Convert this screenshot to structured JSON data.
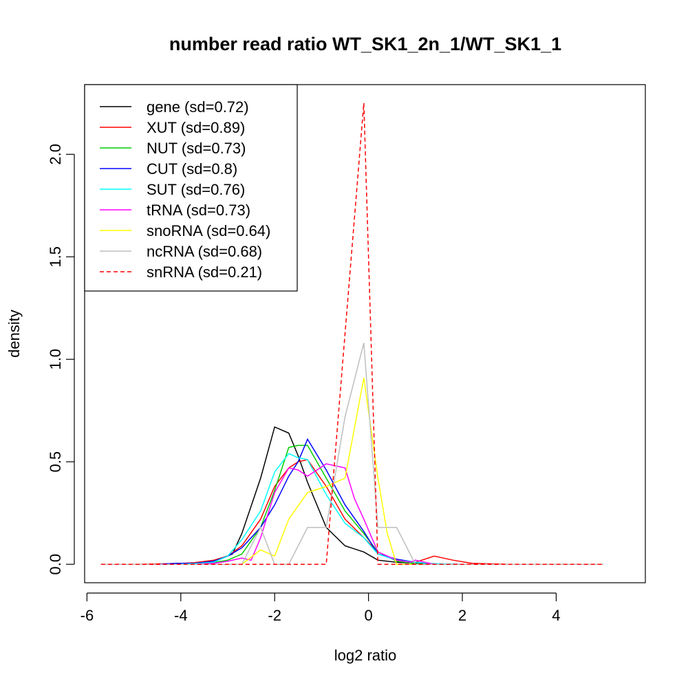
{
  "chart_data": {
    "type": "line",
    "title": "number read ratio WT_SK1_2n_1/WT_SK1_1",
    "xlabel": "log2 ratio",
    "ylabel": "density",
    "xlim": [
      -6.05,
      5.9
    ],
    "ylim": [
      -0.09,
      2.34
    ],
    "x_ticks": [
      -6,
      -4,
      -2,
      0,
      2,
      4
    ],
    "x_tick_labels": [
      "-6",
      "-4",
      "-2",
      "0",
      "2",
      "4"
    ],
    "y_ticks": [
      0,
      0.5,
      1,
      1.5,
      2
    ],
    "y_tick_labels": [
      "0.0",
      "0.5",
      "1.0",
      "1.5",
      "2.0"
    ],
    "grid": false,
    "legend_position": "top-left",
    "series": [
      {
        "name": "gene (sd=0.72)",
        "color": "#000000",
        "dash": "solid",
        "x": [
          -5.7,
          -5.3,
          -4.9,
          -4.5,
          -4.1,
          -3.7,
          -3.3,
          -2.9,
          -2.7,
          -2.3,
          -2.0,
          -1.7,
          -1.5,
          -1.3,
          -0.9,
          -0.5,
          -0.1,
          0.2,
          0.6,
          1.0,
          1.4,
          1.8,
          2.2,
          3.0,
          4.0,
          5.0
        ],
        "y": [
          0,
          0,
          0,
          0,
          0.002,
          0.005,
          0.015,
          0.05,
          0.15,
          0.42,
          0.67,
          0.64,
          0.53,
          0.4,
          0.18,
          0.09,
          0.06,
          0.02,
          0.01,
          0.005,
          0.002,
          0,
          0,
          0,
          0,
          0
        ]
      },
      {
        "name": "XUT (sd=0.89)",
        "color": "#ff0000",
        "dash": "solid",
        "x": [
          -5.7,
          -4.9,
          -4.5,
          -4.1,
          -3.7,
          -3.3,
          -3.0,
          -2.7,
          -2.3,
          -2.0,
          -1.7,
          -1.5,
          -1.3,
          -0.9,
          -0.5,
          -0.1,
          0.2,
          0.6,
          1.0,
          1.4,
          1.8,
          2.2,
          3.0,
          4.0,
          5.0
        ],
        "y": [
          0,
          0,
          0.002,
          0.003,
          0.008,
          0.02,
          0.04,
          0.09,
          0.22,
          0.38,
          0.47,
          0.5,
          0.51,
          0.38,
          0.22,
          0.13,
          0.06,
          0.02,
          0.01,
          0.04,
          0.02,
          0.005,
          0,
          0,
          0
        ]
      },
      {
        "name": "NUT (sd=0.73)",
        "color": "#00cc00",
        "dash": "solid",
        "x": [
          -5.7,
          -4.5,
          -4.1,
          -3.7,
          -3.3,
          -3.0,
          -2.7,
          -2.3,
          -2.0,
          -1.7,
          -1.5,
          -1.3,
          -0.9,
          -0.5,
          -0.1,
          0.2,
          0.6,
          1.0,
          1.4,
          2.0,
          3.0,
          4.0,
          5.0
        ],
        "y": [
          0,
          0,
          0,
          0.002,
          0.008,
          0.02,
          0.05,
          0.18,
          0.36,
          0.57,
          0.58,
          0.58,
          0.42,
          0.26,
          0.15,
          0.06,
          0.015,
          0.003,
          0,
          0,
          0,
          0,
          0
        ]
      },
      {
        "name": "CUT (sd=0.8)",
        "color": "#0000ff",
        "dash": "solid",
        "x": [
          -5.7,
          -4.5,
          -4.1,
          -3.7,
          -3.3,
          -3.0,
          -2.7,
          -2.3,
          -2.0,
          -1.7,
          -1.5,
          -1.3,
          -0.9,
          -0.5,
          -0.1,
          0.2,
          0.6,
          1.0,
          1.4,
          2.0,
          3.0,
          4.0,
          5.0
        ],
        "y": [
          0,
          0,
          0.005,
          0.005,
          0.015,
          0.04,
          0.08,
          0.18,
          0.29,
          0.43,
          0.5,
          0.61,
          0.46,
          0.29,
          0.16,
          0.05,
          0.025,
          0.01,
          0.002,
          0,
          0,
          0,
          0
        ]
      },
      {
        "name": "SUT (sd=0.76)",
        "color": "#00ffff",
        "dash": "solid",
        "x": [
          -5.7,
          -4.5,
          -4.1,
          -3.7,
          -3.3,
          -3.0,
          -2.7,
          -2.3,
          -2.0,
          -1.7,
          -1.5,
          -1.3,
          -0.9,
          -0.5,
          -0.1,
          0.2,
          0.6,
          1.0,
          1.4,
          2.0,
          3.0,
          4.0,
          5.0
        ],
        "y": [
          0,
          0,
          0,
          0.003,
          0.01,
          0.04,
          0.12,
          0.26,
          0.45,
          0.54,
          0.52,
          0.51,
          0.34,
          0.2,
          0.13,
          0.05,
          0.02,
          0.01,
          0.003,
          0,
          0,
          0,
          0
        ]
      },
      {
        "name": "tRNA (sd=0.73)",
        "color": "#ff00ff",
        "dash": "solid",
        "x": [
          -5.7,
          -3.7,
          -3.3,
          -3.0,
          -2.7,
          -2.5,
          -2.3,
          -2.0,
          -1.7,
          -1.5,
          -1.3,
          -0.9,
          -0.5,
          -0.3,
          -0.1,
          0.2,
          0.6,
          0.9,
          1.0,
          1.2,
          1.4,
          2.0,
          3.0,
          4.0,
          5.0
        ],
        "y": [
          0,
          0,
          0.005,
          0.015,
          0.03,
          0.02,
          0.13,
          0.35,
          0.47,
          0.46,
          0.43,
          0.49,
          0.47,
          0.32,
          0.22,
          0.06,
          0.02,
          0.01,
          0.02,
          0.01,
          0,
          0,
          0,
          0,
          0
        ]
      },
      {
        "name": "snoRNA (sd=0.64)",
        "color": "#ffff00",
        "dash": "solid",
        "x": [
          -5.7,
          -2.7,
          -2.3,
          -2.0,
          -1.7,
          -1.3,
          -0.9,
          -0.5,
          -0.1,
          0.2,
          0.4,
          0.6,
          1.0,
          2.0,
          3.0,
          4.0,
          5.0
        ],
        "y": [
          0,
          0,
          0.07,
          0.04,
          0.22,
          0.35,
          0.38,
          0.42,
          0.91,
          0.42,
          0.15,
          0,
          0,
          0,
          0,
          0,
          0
        ]
      },
      {
        "name": "ncRNA (sd=0.68)",
        "color": "#bebebe",
        "dash": "solid",
        "x": [
          -5.7,
          -2.7,
          -2.3,
          -2.0,
          -1.7,
          -1.3,
          -0.9,
          -0.5,
          -0.1,
          0.2,
          0.6,
          1.0,
          2.0,
          3.0,
          4.0,
          5.0
        ],
        "y": [
          0,
          0,
          0.18,
          0,
          0,
          0.18,
          0.18,
          0.72,
          1.08,
          0.18,
          0.18,
          0,
          0,
          0,
          0,
          0
        ]
      },
      {
        "name": "snRNA (sd=0.21)",
        "color": "#ff0000",
        "dash": "dashed",
        "x": [
          -5.7,
          -0.9,
          -0.1,
          0.2,
          0.6,
          1.0,
          2.0,
          3.0,
          4.0,
          5.0
        ],
        "y": [
          0,
          0,
          2.25,
          0,
          0,
          0,
          0,
          0,
          0,
          0
        ]
      }
    ]
  }
}
